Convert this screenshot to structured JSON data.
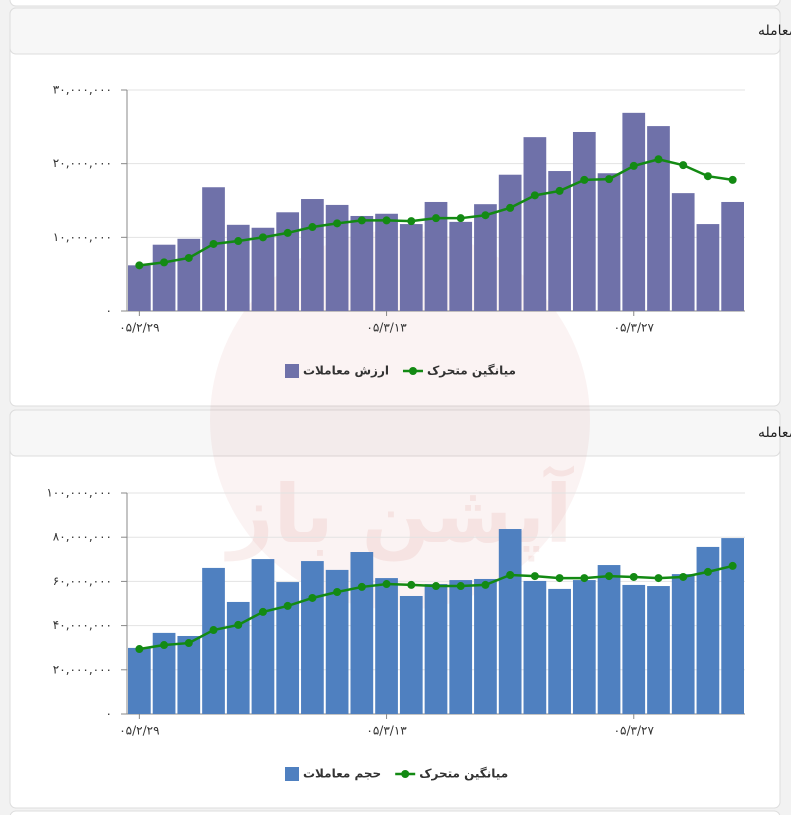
{
  "watermark": "آپشن باز",
  "chart_data": [
    {
      "type": "bar",
      "title": "نمودار روزانه ارزش معاملات اختیار معامله",
      "categories": [
        "۰۵/۲/۲۹",
        null,
        null,
        null,
        null,
        null,
        null,
        null,
        null,
        null,
        "۰۵/۳/۱۳",
        null,
        null,
        null,
        null,
        null,
        null,
        null,
        null,
        null,
        "۰۵/۳/۲۷",
        null,
        null,
        null,
        null
      ],
      "series": [
        {
          "name": "ارزش معاملات",
          "type": "bar",
          "color": "#6f71a9",
          "values": [
            6200000,
            9000000,
            9800000,
            16800000,
            11700000,
            11300000,
            13400000,
            15200000,
            14400000,
            12900000,
            13200000,
            11800000,
            14800000,
            12100000,
            14500000,
            18500000,
            23600000,
            19000000,
            24300000,
            18700000,
            26900000,
            25100000,
            16000000,
            11800000,
            14800000
          ]
        },
        {
          "name": "میانگین متحرک",
          "type": "line",
          "color": "#138a13",
          "values": [
            6200000,
            6600000,
            7200000,
            9100000,
            9500000,
            10000000,
            10600000,
            11400000,
            11900000,
            12300000,
            12300000,
            12200000,
            12600000,
            12600000,
            13000000,
            14000000,
            15700000,
            16300000,
            17800000,
            17900000,
            19700000,
            20600000,
            19800000,
            18300000,
            17800000
          ]
        }
      ],
      "ylim": [
        0,
        30000000
      ],
      "yticks": [
        {
          "value": 0,
          "label": "۰"
        },
        {
          "value": 10000000,
          "label": "۱۰,۰۰۰,۰۰۰"
        },
        {
          "value": 20000000,
          "label": "۲۰,۰۰۰,۰۰۰"
        },
        {
          "value": 30000000,
          "label": "۳۰,۰۰۰,۰۰۰"
        }
      ],
      "grid": true
    },
    {
      "type": "bar",
      "title": "نمودار روزانه حجم معاملات اختیار معامله",
      "categories": [
        "۰۵/۲/۲۹",
        null,
        null,
        null,
        null,
        null,
        null,
        null,
        null,
        null,
        "۰۵/۳/۱۳",
        null,
        null,
        null,
        null,
        null,
        null,
        null,
        null,
        null,
        "۰۵/۳/۲۷",
        null,
        null,
        null,
        null
      ],
      "series": [
        {
          "name": "حجم معاملات",
          "type": "bar",
          "color": "#4f80c0",
          "values": [
            29900000,
            36700000,
            35300000,
            66100000,
            50700000,
            70100000,
            59700000,
            69200000,
            65200000,
            73300000,
            61500000,
            53400000,
            58800000,
            60600000,
            61100000,
            83700000,
            60200000,
            56600000,
            60600000,
            67400000,
            58400000,
            57900000,
            63300000,
            75600000,
            79600000
          ]
        },
        {
          "name": "میانگین متحرک",
          "type": "line",
          "color": "#138a13",
          "values": [
            29400000,
            31200000,
            32100000,
            38000000,
            40300000,
            46200000,
            48900000,
            52500000,
            55200000,
            57500000,
            58800000,
            58400000,
            57900000,
            57900000,
            58400000,
            62900000,
            62400000,
            61500000,
            61500000,
            62400000,
            62000000,
            61500000,
            62000000,
            64300000,
            67000000
          ]
        }
      ],
      "ylim": [
        0,
        100000000
      ],
      "yticks": [
        {
          "value": 0,
          "label": "۰"
        },
        {
          "value": 20000000,
          "label": "۲۰,۰۰۰,۰۰۰"
        },
        {
          "value": 40000000,
          "label": "۴۰,۰۰۰,۰۰۰"
        },
        {
          "value": 60000000,
          "label": "۶۰,۰۰۰,۰۰۰"
        },
        {
          "value": 80000000,
          "label": "۸۰,۰۰۰,۰۰۰"
        },
        {
          "value": 100000000,
          "label": "۱۰۰,۰۰۰,۰۰۰"
        }
      ],
      "grid": true
    }
  ]
}
